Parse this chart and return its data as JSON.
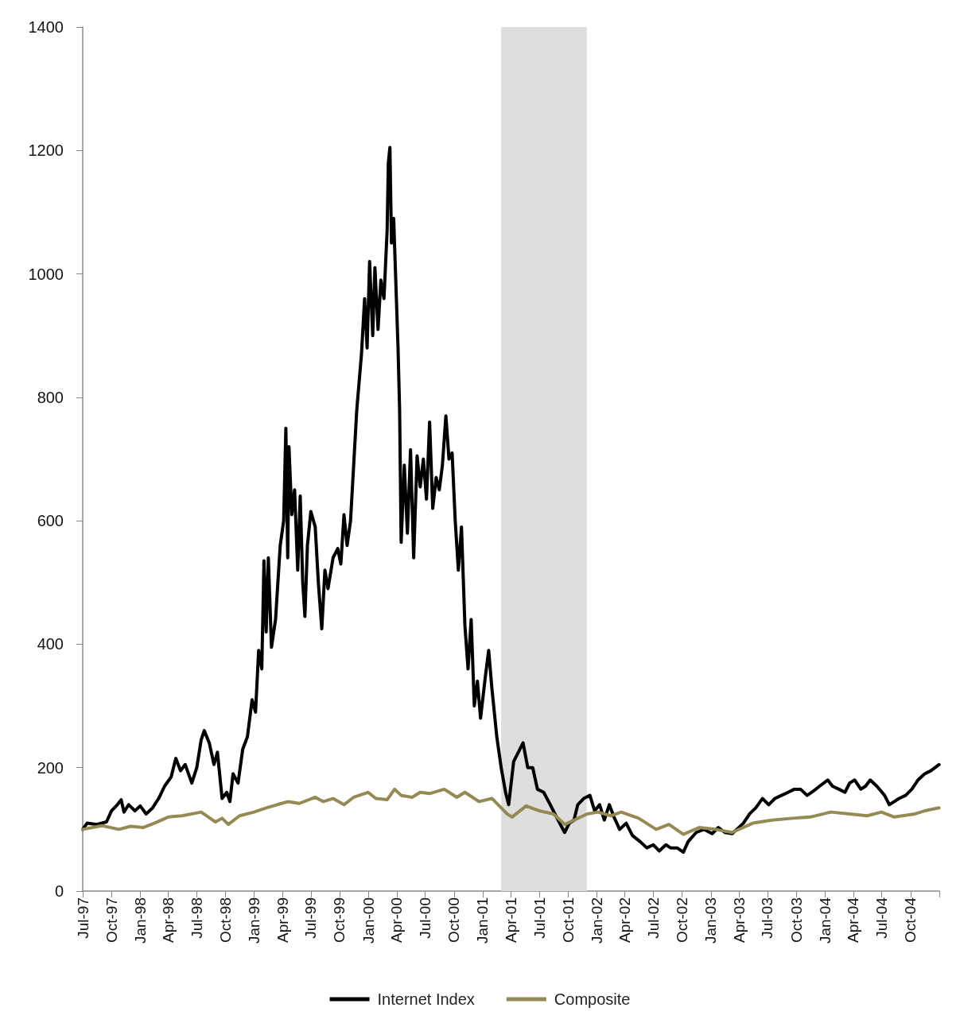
{
  "chart_data": {
    "type": "line",
    "xlim": [
      "1997-07-01",
      "2005-01-01"
    ],
    "xticks": [
      {
        "value": "1997-07-01",
        "label": "Jul-97"
      },
      {
        "value": "1997-10-01",
        "label": "Oct-97"
      },
      {
        "value": "1998-01-01",
        "label": "Jan-98"
      },
      {
        "value": "1998-04-01",
        "label": "Apr-98"
      },
      {
        "value": "1998-07-01",
        "label": "Jul-98"
      },
      {
        "value": "1998-10-01",
        "label": "Oct-98"
      },
      {
        "value": "1999-01-01",
        "label": "Jan-99"
      },
      {
        "value": "1999-04-01",
        "label": "Apr-99"
      },
      {
        "value": "1999-07-01",
        "label": "Jul-99"
      },
      {
        "value": "1999-10-01",
        "label": "Oct-99"
      },
      {
        "value": "2000-01-01",
        "label": "Jan-00"
      },
      {
        "value": "2000-04-01",
        "label": "Apr-00"
      },
      {
        "value": "2000-07-01",
        "label": "Jul-00"
      },
      {
        "value": "2000-10-01",
        "label": "Oct-00"
      },
      {
        "value": "2001-01-01",
        "label": "Jan-01"
      },
      {
        "value": "2001-04-01",
        "label": "Apr-01"
      },
      {
        "value": "2001-07-01",
        "label": "Jul-01"
      },
      {
        "value": "2001-10-01",
        "label": "Oct-01"
      },
      {
        "value": "2002-01-01",
        "label": "Jan-02"
      },
      {
        "value": "2002-04-01",
        "label": "Apr-02"
      },
      {
        "value": "2002-07-01",
        "label": "Jul-02"
      },
      {
        "value": "2002-10-01",
        "label": "Oct-02"
      },
      {
        "value": "2003-01-01",
        "label": "Jan-03"
      },
      {
        "value": "2003-04-01",
        "label": "Apr-03"
      },
      {
        "value": "2003-07-01",
        "label": "Jul-03"
      },
      {
        "value": "2003-10-01",
        "label": "Oct-03"
      },
      {
        "value": "2004-01-01",
        "label": "Jan-04"
      },
      {
        "value": "2004-04-01",
        "label": "Apr-04"
      },
      {
        "value": "2004-07-01",
        "label": "Jul-04"
      },
      {
        "value": "2004-10-01",
        "label": "Oct-04"
      },
      {
        "value": "2005-01-01",
        "label": null
      }
    ],
    "ylim": [
      0,
      1400
    ],
    "yticks": [
      0,
      200,
      400,
      600,
      800,
      1000,
      1200,
      1400
    ],
    "grid": false,
    "legend": "bottom",
    "marker": "none",
    "line_style": "solid",
    "bands": [
      {
        "axis": "x",
        "from": "2001-03-01",
        "to": "2001-11-30",
        "color": "#dedede"
      }
    ],
    "series": [
      {
        "name": "Internet Index",
        "color": "#000000",
        "x": [
          "1997-07-01",
          "1997-07-15",
          "1997-08-15",
          "1997-09-15",
          "1997-10-01",
          "1997-10-20",
          "1997-11-01",
          "1997-11-10",
          "1997-11-25",
          "1997-12-15",
          "1998-01-01",
          "1998-01-20",
          "1998-02-10",
          "1998-03-01",
          "1998-03-20",
          "1998-04-10",
          "1998-04-25",
          "1998-05-10",
          "1998-05-25",
          "1998-06-15",
          "1998-07-01",
          "1998-07-15",
          "1998-07-25",
          "1998-08-10",
          "1998-08-25",
          "1998-09-05",
          "1998-09-20",
          "1998-10-05",
          "1998-10-15",
          "1998-10-25",
          "1998-11-10",
          "1998-11-25",
          "1998-12-10",
          "1998-12-25",
          "1999-01-05",
          "1999-01-15",
          "1999-01-25",
          "1999-02-01",
          "1999-02-08",
          "1999-02-15",
          "1999-02-25",
          "1999-03-10",
          "1999-03-25",
          "1999-04-05",
          "1999-04-12",
          "1999-04-18",
          "1999-04-22",
          "1999-05-01",
          "1999-05-10",
          "1999-05-20",
          "1999-05-28",
          "1999-06-05",
          "1999-06-12",
          "1999-06-20",
          "1999-07-01",
          "1999-07-15",
          "1999-07-25",
          "1999-08-05",
          "1999-08-15",
          "1999-08-25",
          "1999-09-10",
          "1999-09-25",
          "1999-10-05",
          "1999-10-15",
          "1999-10-25",
          "1999-11-05",
          "1999-11-15",
          "1999-11-25",
          "1999-12-10",
          "1999-12-20",
          "1999-12-28",
          "2000-01-05",
          "2000-01-15",
          "2000-01-22",
          "2000-02-01",
          "2000-02-10",
          "2000-02-20",
          "2000-03-01",
          "2000-03-05",
          "2000-03-10",
          "2000-03-15",
          "2000-03-22",
          "2000-03-28",
          "2000-04-05",
          "2000-04-10",
          "2000-04-15",
          "2000-04-25",
          "2000-05-05",
          "2000-05-15",
          "2000-05-25",
          "2000-06-05",
          "2000-06-15",
          "2000-06-25",
          "2000-07-05",
          "2000-07-15",
          "2000-07-25",
          "2000-08-05",
          "2000-08-15",
          "2000-08-25",
          "2000-09-05",
          "2000-09-15",
          "2000-09-25",
          "2000-10-05",
          "2000-10-15",
          "2000-10-25",
          "2000-11-05",
          "2000-11-15",
          "2000-11-25",
          "2000-12-05",
          "2000-12-15",
          "2000-12-25",
          "2001-01-10",
          "2001-01-20",
          "2001-01-30",
          "2001-02-15",
          "2001-03-01",
          "2001-03-15",
          "2001-03-25",
          "2001-04-10",
          "2001-04-25",
          "2001-05-10",
          "2001-05-25",
          "2001-06-10",
          "2001-06-25",
          "2001-07-15",
          "2001-08-05",
          "2001-08-25",
          "2001-09-20",
          "2001-10-05",
          "2001-10-20",
          "2001-11-01",
          "2001-11-20",
          "2001-12-10",
          "2001-12-25",
          "2002-01-10",
          "2002-01-25",
          "2002-02-10",
          "2002-02-25",
          "2002-03-15",
          "2002-04-05",
          "2002-04-25",
          "2002-05-20",
          "2002-06-10",
          "2002-07-01",
          "2002-07-20",
          "2002-08-10",
          "2002-08-25",
          "2002-09-15",
          "2002-10-05",
          "2002-10-20",
          "2002-11-15",
          "2002-12-10",
          "2003-01-05",
          "2003-01-25",
          "2003-02-15",
          "2003-03-10",
          "2003-03-25",
          "2003-04-15",
          "2003-05-05",
          "2003-05-25",
          "2003-06-15",
          "2003-07-05",
          "2003-07-25",
          "2003-08-15",
          "2003-09-05",
          "2003-09-25",
          "2003-10-15",
          "2003-11-05",
          "2003-11-25",
          "2003-12-15",
          "2004-01-10",
          "2004-01-25",
          "2004-02-15",
          "2004-03-05",
          "2004-03-20",
          "2004-04-05",
          "2004-04-25",
          "2004-05-10",
          "2004-05-25",
          "2004-06-15",
          "2004-07-10",
          "2004-07-25",
          "2004-08-10",
          "2004-08-25",
          "2004-09-15",
          "2004-10-05",
          "2004-10-25",
          "2004-11-15",
          "2004-12-05",
          "2004-12-31"
        ],
        "values": [
          100,
          110,
          108,
          112,
          130,
          140,
          148,
          128,
          140,
          130,
          138,
          125,
          135,
          150,
          170,
          185,
          215,
          195,
          205,
          175,
          200,
          245,
          260,
          240,
          205,
          225,
          150,
          160,
          145,
          190,
          175,
          230,
          250,
          310,
          290,
          390,
          360,
          535,
          420,
          540,
          395,
          440,
          560,
          600,
          750,
          540,
          720,
          610,
          650,
          520,
          640,
          500,
          445,
          560,
          615,
          590,
          500,
          425,
          520,
          490,
          540,
          555,
          530,
          610,
          560,
          600,
          690,
          780,
          870,
          960,
          880,
          1020,
          900,
          1010,
          910,
          990,
          960,
          1070,
          1180,
          1205,
          1050,
          1090,
          1000,
          880,
          780,
          565,
          690,
          580,
          715,
          540,
          705,
          655,
          700,
          635,
          760,
          620,
          670,
          650,
          690,
          770,
          700,
          710,
          600,
          520,
          590,
          430,
          360,
          440,
          300,
          340,
          280,
          350,
          390,
          330,
          250,
          200,
          160,
          140,
          210,
          225,
          240,
          200,
          200,
          165,
          160,
          140,
          120,
          95,
          110,
          115,
          140,
          150,
          155,
          130,
          140,
          115,
          140,
          120,
          100,
          110,
          90,
          80,
          70,
          75,
          65,
          75,
          70,
          70,
          63,
          80,
          95,
          100,
          93,
          103,
          95,
          93,
          100,
          110,
          125,
          135,
          150,
          140,
          150,
          155,
          160,
          165,
          165,
          155,
          162,
          170,
          180,
          170,
          165,
          160,
          175,
          180,
          165,
          170,
          180,
          170,
          155,
          140,
          145,
          150,
          155,
          165,
          180,
          190,
          195,
          205
        ]
      },
      {
        "name": "Composite",
        "color": "#948a54",
        "x": [
          "1997-07-01",
          "1997-09-01",
          "1997-10-25",
          "1997-12-01",
          "1998-01-10",
          "1998-02-15",
          "1998-04-01",
          "1998-05-15",
          "1998-07-15",
          "1998-08-30",
          "1998-09-20",
          "1998-10-10",
          "1998-11-15",
          "1998-12-31",
          "1999-02-10",
          "1999-03-15",
          "1999-04-20",
          "1999-05-25",
          "1999-07-15",
          "1999-08-10",
          "1999-09-10",
          "1999-10-15",
          "1999-11-15",
          "1999-12-31",
          "2000-01-25",
          "2000-03-01",
          "2000-03-25",
          "2000-04-15",
          "2000-05-20",
          "2000-06-15",
          "2000-07-15",
          "2000-08-31",
          "2000-10-10",
          "2000-11-05",
          "2000-12-20",
          "2001-01-31",
          "2001-03-20",
          "2001-04-05",
          "2001-05-20",
          "2001-07-01",
          "2001-08-15",
          "2001-09-21",
          "2001-10-20",
          "2001-12-01",
          "2002-01-05",
          "2002-02-15",
          "2002-03-20",
          "2002-05-15",
          "2002-07-10",
          "2002-08-20",
          "2002-10-05",
          "2002-11-25",
          "2003-01-15",
          "2003-03-10",
          "2003-05-15",
          "2003-07-15",
          "2003-09-20",
          "2003-11-15",
          "2004-01-20",
          "2004-03-20",
          "2004-05-15",
          "2004-06-30",
          "2004-08-10",
          "2004-10-15",
          "2004-11-15",
          "2004-12-31"
        ],
        "values": [
          100,
          106,
          100,
          105,
          103,
          110,
          120,
          122,
          128,
          112,
          118,
          108,
          122,
          128,
          135,
          140,
          145,
          142,
          152,
          145,
          150,
          140,
          152,
          160,
          150,
          148,
          165,
          155,
          152,
          160,
          158,
          165,
          152,
          160,
          145,
          150,
          125,
          120,
          138,
          130,
          125,
          108,
          115,
          125,
          128,
          122,
          128,
          118,
          100,
          108,
          92,
          103,
          100,
          95,
          110,
          115,
          118,
          120,
          128,
          125,
          122,
          128,
          120,
          125,
          130,
          135
        ]
      }
    ]
  }
}
